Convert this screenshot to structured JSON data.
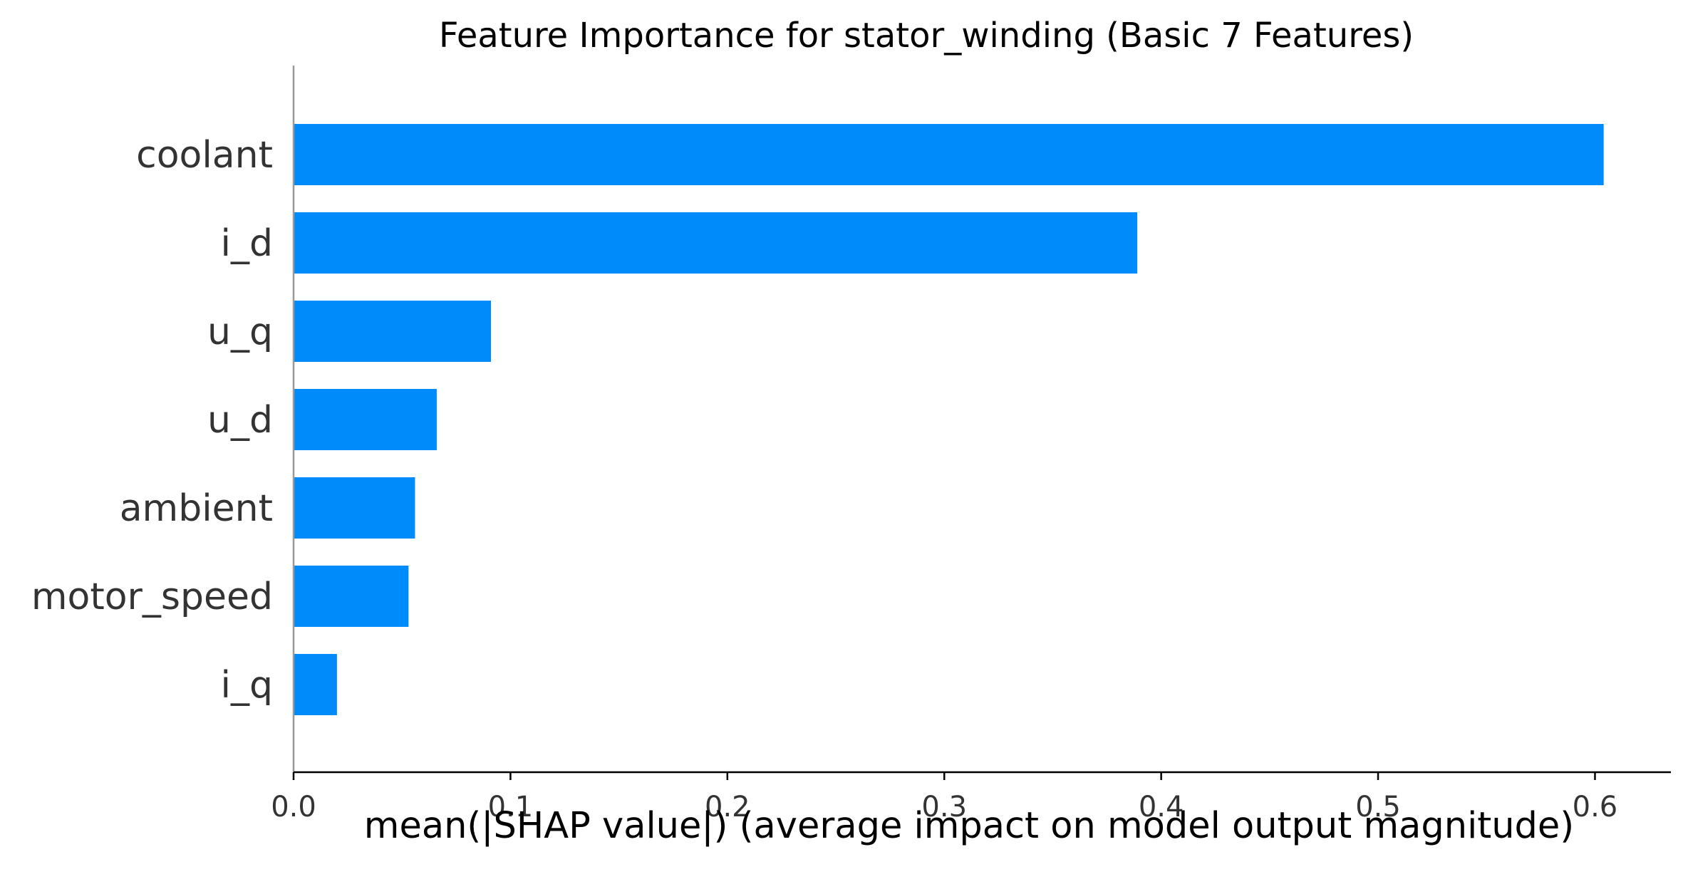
{
  "chart_data": {
    "type": "bar",
    "orientation": "horizontal",
    "title": "Feature Importance for stator_winding (Basic 7 Features)",
    "xlabel": "mean(|SHAP value|) (average impact on model output magnitude)",
    "ylabel": "",
    "categories": [
      "coolant",
      "i_d",
      "u_q",
      "u_d",
      "ambient",
      "motor_speed",
      "i_q"
    ],
    "values": [
      0.604,
      0.389,
      0.091,
      0.066,
      0.056,
      0.053,
      0.02
    ],
    "xlim": [
      0,
      0.635
    ],
    "xticks": [
      0.0,
      0.1,
      0.2,
      0.3,
      0.4,
      0.5,
      0.6
    ],
    "xtick_labels": [
      "0.0",
      "0.1",
      "0.2",
      "0.3",
      "0.4",
      "0.5",
      "0.6"
    ],
    "grid": false,
    "legend": "none",
    "bar_color": "#008bfb"
  }
}
